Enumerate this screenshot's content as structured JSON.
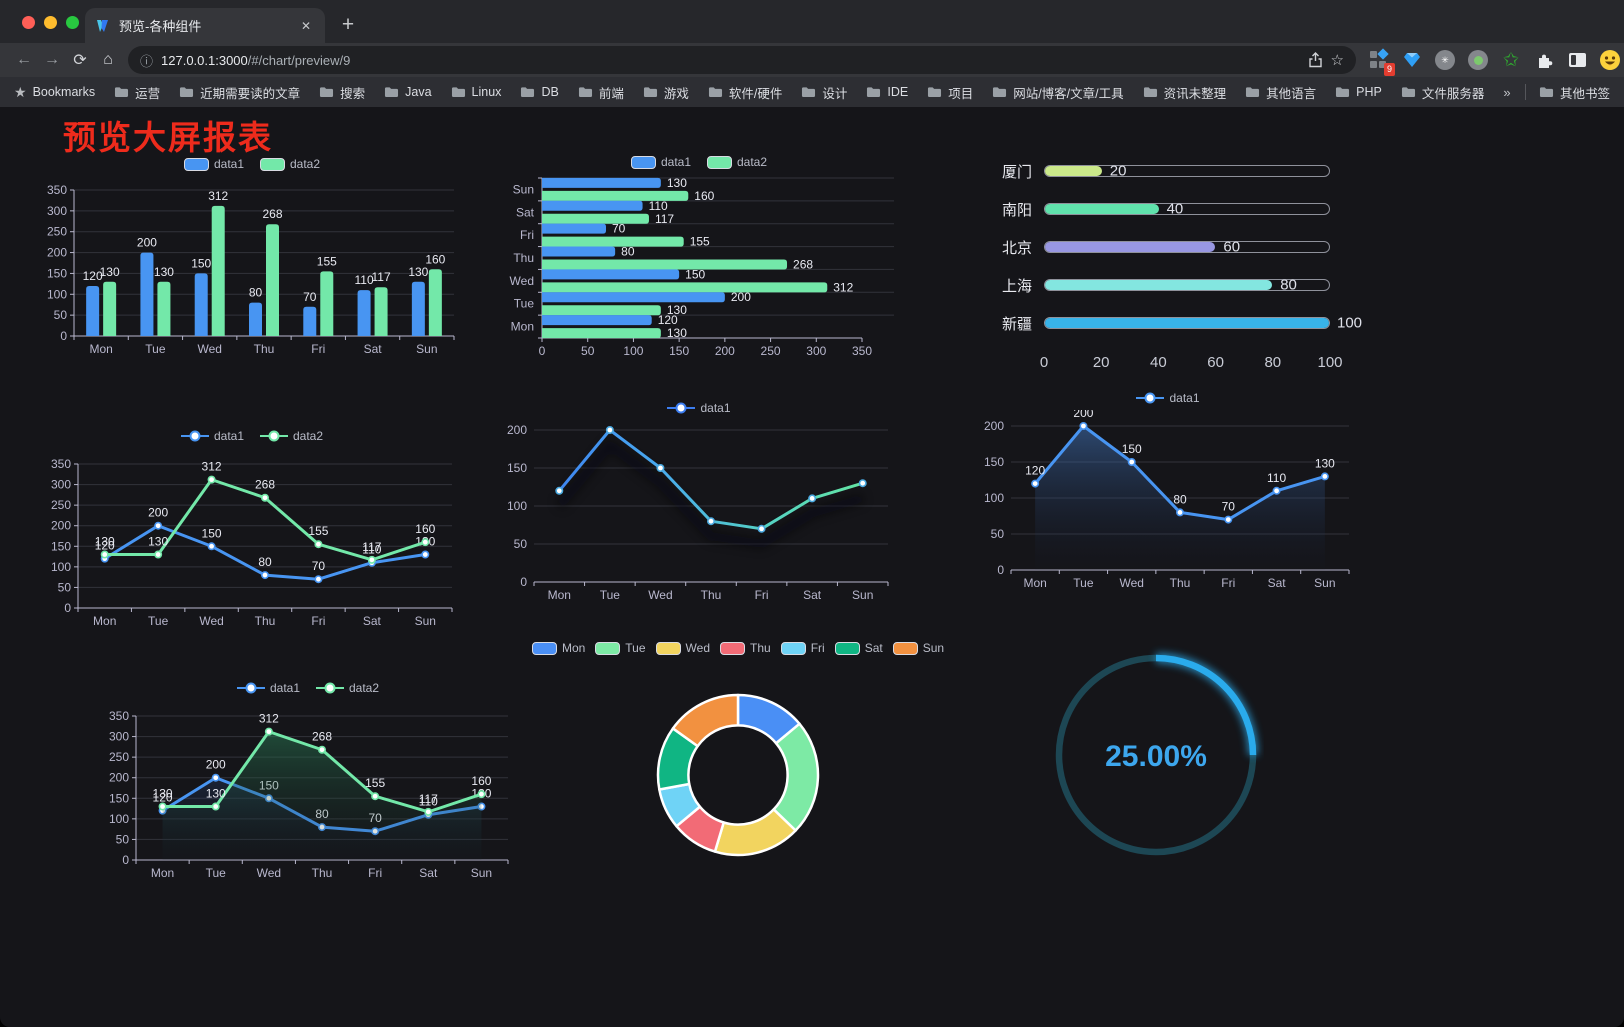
{
  "browser": {
    "tab_title": "预览-各种组件",
    "url_host": "127.0.0.1:3000",
    "url_path": "/#/chart/preview/9",
    "extension_badge": "9",
    "icons": {
      "back": "←",
      "forward": "→",
      "reload": "⟳",
      "home": "⌂",
      "info": "ⓘ",
      "star": "☆",
      "bookmark_star": "★",
      "menu": "⋮",
      "close": "✕",
      "plus": "+"
    }
  },
  "bookmarks": {
    "label": "Bookmarks",
    "items": [
      "运营",
      "近期需要读的文章",
      "搜索",
      "Java",
      "Linux",
      "DB",
      "前端",
      "游戏",
      "软件/硬件",
      "设计",
      "IDE",
      "项目",
      "网站/博客/文章/工具",
      "资讯未整理",
      "其他语言",
      "PHP",
      "文件服务器"
    ],
    "overflow": "»",
    "other": "其他书签"
  },
  "page": {
    "title": "预览大屏报表",
    "title_color": "#ee2b1c",
    "background": "#151519"
  },
  "palette": {
    "series_blue": "#4895f2",
    "series_green": "#73e8a9",
    "axis": "#b9b8ce"
  },
  "chart_data": [
    {
      "id": "bar-vertical",
      "type": "bar",
      "categories": [
        "Mon",
        "Tue",
        "Wed",
        "Thu",
        "Fri",
        "Sat",
        "Sun"
      ],
      "series": [
        {
          "name": "data1",
          "color": "#4895f2",
          "values": [
            120,
            200,
            150,
            80,
            70,
            110,
            130
          ]
        },
        {
          "name": "data2",
          "color": "#73e8a9",
          "values": [
            130,
            130,
            312,
            268,
            155,
            117,
            160
          ]
        }
      ],
      "ylim": [
        0,
        350
      ],
      "ytick": 50,
      "y_axis_line": true,
      "value_labels": true,
      "legend_position": "top",
      "grid": true
    },
    {
      "id": "bar-horizontal",
      "type": "bar",
      "orientation": "horizontal",
      "categories_top_to_bottom": [
        "Sun",
        "Sat",
        "Fri",
        "Thu",
        "Wed",
        "Tue",
        "Mon"
      ],
      "series": [
        {
          "name": "data1",
          "color": "#4895f2",
          "values_top_to_bottom": [
            130,
            110,
            70,
            80,
            150,
            200,
            120
          ]
        },
        {
          "name": "data2",
          "color": "#73e8a9",
          "values_top_to_bottom": [
            160,
            117,
            155,
            268,
            312,
            130,
            130
          ]
        }
      ],
      "xlim": [
        0,
        350
      ],
      "xtick": 50,
      "value_labels": true,
      "legend_position": "top"
    },
    {
      "id": "progress-bars",
      "type": "bar",
      "orientation": "horizontal-progress",
      "items": [
        {
          "label": "厦门",
          "value": 20,
          "color": "#cbe98a"
        },
        {
          "label": "南阳",
          "value": 40,
          "color": "#60e2ac"
        },
        {
          "label": "北京",
          "value": 60,
          "color": "#9897e2"
        },
        {
          "label": "上海",
          "value": 80,
          "color": "#83e6e0"
        },
        {
          "label": "新疆",
          "value": 100,
          "color": "#38b3e9"
        }
      ],
      "max": 100,
      "xticks": [
        0,
        20,
        40,
        60,
        80,
        100
      ]
    },
    {
      "id": "line-two",
      "type": "line",
      "categories": [
        "Mon",
        "Tue",
        "Wed",
        "Thu",
        "Fri",
        "Sat",
        "Sun"
      ],
      "series": [
        {
          "name": "data1",
          "color": "#4895f2",
          "values": [
            120,
            200,
            150,
            80,
            70,
            110,
            130
          ]
        },
        {
          "name": "data2",
          "color": "#73e8a9",
          "values": [
            130,
            130,
            312,
            268,
            155,
            117,
            160
          ]
        }
      ],
      "ylim": [
        0,
        350
      ],
      "ytick": 50,
      "y_axis_line": true,
      "value_labels": true,
      "legend_position": "top"
    },
    {
      "id": "line-gradient",
      "type": "line",
      "categories": [
        "Mon",
        "Tue",
        "Wed",
        "Thu",
        "Fri",
        "Sat",
        "Sun"
      ],
      "series": [
        {
          "name": "data1",
          "gradient": [
            "#3c7df0",
            "#48a7ef",
            "#55d3c2",
            "#68e99b"
          ],
          "marker_color": "#4aa9e0",
          "values": [
            120,
            200,
            150,
            80,
            70,
            110,
            130
          ]
        }
      ],
      "ylim": [
        0,
        200
      ],
      "ytick": 50,
      "y_axis_line": false,
      "value_labels": false,
      "shadow": true,
      "legend_position": "top"
    },
    {
      "id": "line-area",
      "type": "line",
      "categories": [
        "Mon",
        "Tue",
        "Wed",
        "Thu",
        "Fri",
        "Sat",
        "Sun"
      ],
      "series": [
        {
          "name": "data1",
          "color": "#4895f2",
          "values": [
            120,
            200,
            150,
            80,
            70,
            110,
            130
          ],
          "area": [
            "rgba(70,125,200,0.50)",
            "rgba(20,30,55,0.04)"
          ]
        }
      ],
      "ylim": [
        0,
        200
      ],
      "ytick": 50,
      "y_axis_line": false,
      "value_labels": true,
      "legend_position": "top"
    },
    {
      "id": "area-two",
      "type": "line",
      "categories": [
        "Mon",
        "Tue",
        "Wed",
        "Thu",
        "Fri",
        "Sat",
        "Sun"
      ],
      "series": [
        {
          "name": "data1",
          "color": "#4895f2",
          "values": [
            120,
            200,
            150,
            80,
            70,
            110,
            130
          ],
          "area": [
            "rgba(55,105,190,0.45)",
            "rgba(20,30,55,0.04)"
          ]
        },
        {
          "name": "data2",
          "color": "#73e8a9",
          "values": [
            130,
            130,
            312,
            268,
            155,
            117,
            160
          ],
          "area": [
            "rgba(45,140,95,0.55)",
            "rgba(20,40,35,0.05)"
          ]
        }
      ],
      "ylim": [
        0,
        350
      ],
      "ytick": 50,
      "y_axis_line": true,
      "value_labels": true,
      "legend_position": "top"
    },
    {
      "id": "donut",
      "type": "pie",
      "labels": [
        "Mon",
        "Tue",
        "Wed",
        "Thu",
        "Fri",
        "Sat",
        "Sun"
      ],
      "values": [
        120,
        200,
        150,
        80,
        70,
        110,
        130
      ],
      "colors": [
        "#4a8ff5",
        "#7deaa5",
        "#f2d45f",
        "#f26b76",
        "#6fd3f6",
        "#10b583",
        "#f29140"
      ],
      "inner_radius_ratio": 0.62,
      "legend_position": "top"
    },
    {
      "id": "gauge",
      "type": "gauge",
      "value": 25,
      "max": 100,
      "label": "25.00%",
      "color": "#2aabec",
      "track_color": "#1d4754",
      "text_color": "#3da7ee"
    }
  ]
}
